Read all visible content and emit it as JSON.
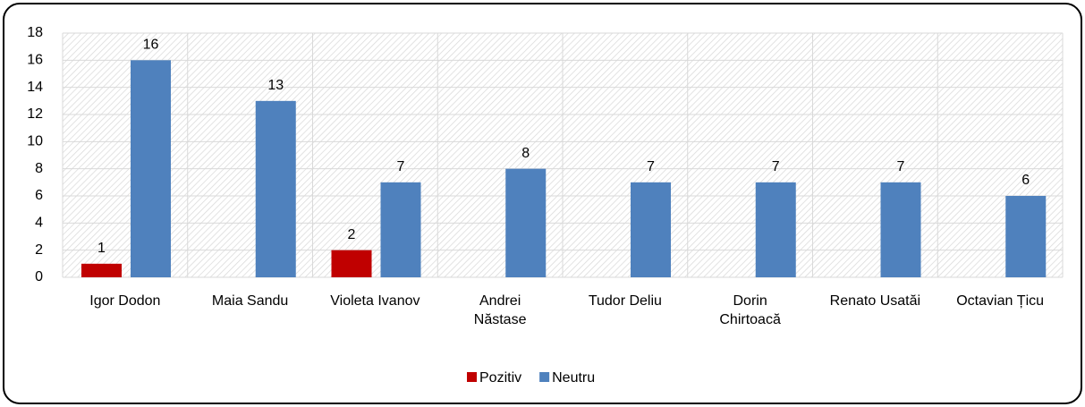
{
  "chart_data": {
    "type": "bar",
    "categories": [
      "Igor Dodon",
      "Maia Sandu",
      "Violeta Ivanov",
      "Andrei\nNăstase",
      "Tudor Deliu",
      "Dorin\nChirtoacă",
      "Renato Usatăi",
      "Octavian Țicu"
    ],
    "series": [
      {
        "name": "Pozitiv",
        "color": "#c00000",
        "values": [
          1,
          null,
          2,
          null,
          null,
          null,
          null,
          null
        ]
      },
      {
        "name": "Neutru",
        "color": "#4f81bd",
        "values": [
          16,
          13,
          7,
          8,
          7,
          7,
          7,
          6
        ]
      }
    ],
    "ylim": [
      0,
      18
    ],
    "yticks": [
      0,
      2,
      4,
      6,
      8,
      10,
      12,
      14,
      16,
      18
    ],
    "grid": true,
    "legend": "bottom"
  }
}
